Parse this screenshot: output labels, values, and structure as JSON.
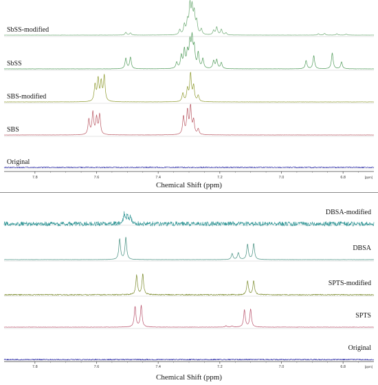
{
  "chart_data": [
    {
      "type": "line",
      "title": "",
      "xlabel": "Chemical Shift (ppm)",
      "ylabel": "",
      "xlim": [
        7.9,
        6.7
      ],
      "x_reversed": true,
      "ticks": [
        "7.8",
        "7.6",
        "7.4",
        "7.2",
        "7.0",
        "6.8"
      ],
      "unit_tick": "[ppm]",
      "grid": false,
      "legend": "none",
      "series": [
        {
          "name": "SbSS-modified",
          "color": "#6aa870",
          "noise": 0.15,
          "peaks": [
            [
              7.505,
              0.1
            ],
            [
              7.49,
              0.08
            ],
            [
              7.33,
              0.18
            ],
            [
              7.315,
              0.35
            ],
            [
              7.305,
              0.45
            ],
            [
              7.297,
              1.0
            ],
            [
              7.29,
              0.88
            ],
            [
              7.283,
              0.72
            ],
            [
              7.275,
              0.45
            ],
            [
              7.26,
              0.2
            ],
            [
              7.22,
              0.16
            ],
            [
              7.21,
              0.28
            ],
            [
              7.195,
              0.2
            ],
            [
              7.18,
              0.08
            ],
            [
              6.88,
              0.05
            ],
            [
              6.86,
              0.06
            ],
            [
              6.82,
              0.05
            ],
            [
              6.79,
              0.04
            ]
          ]
        },
        {
          "name": "SbSS",
          "color": "#4e9a58",
          "noise": 0.2,
          "peaks": [
            [
              7.505,
              0.38
            ],
            [
              7.49,
              0.42
            ],
            [
              7.34,
              0.22
            ],
            [
              7.325,
              0.45
            ],
            [
              7.315,
              0.65
            ],
            [
              7.305,
              0.55
            ],
            [
              7.297,
              0.85
            ],
            [
              7.29,
              1.0
            ],
            [
              7.283,
              0.7
            ],
            [
              7.27,
              0.55
            ],
            [
              7.255,
              0.35
            ],
            [
              7.22,
              0.28
            ],
            [
              7.21,
              0.32
            ],
            [
              7.195,
              0.22
            ],
            [
              6.92,
              0.3
            ],
            [
              6.895,
              0.48
            ],
            [
              6.835,
              0.58
            ],
            [
              6.805,
              0.25
            ]
          ]
        },
        {
          "name": "SBS-modified",
          "color": "#8e9a2e",
          "noise": 0.25,
          "peaks": [
            [
              7.605,
              0.6
            ],
            [
              7.595,
              0.8
            ],
            [
              7.585,
              0.68
            ],
            [
              7.575,
              0.92
            ],
            [
              7.32,
              0.3
            ],
            [
              7.305,
              0.45
            ],
            [
              7.295,
              1.0
            ],
            [
              7.285,
              0.55
            ],
            [
              7.27,
              0.22
            ]
          ]
        },
        {
          "name": "SBS",
          "color": "#b85560",
          "noise": 0.2,
          "peaks": [
            [
              7.625,
              0.55
            ],
            [
              7.612,
              0.8
            ],
            [
              7.6,
              0.6
            ],
            [
              7.59,
              0.72
            ],
            [
              7.318,
              0.65
            ],
            [
              7.305,
              0.85
            ],
            [
              7.295,
              1.0
            ],
            [
              7.285,
              0.5
            ],
            [
              7.27,
              0.2
            ]
          ]
        },
        {
          "name": "Original",
          "color": "#2e2ea8",
          "noise": 1.0,
          "peaks": []
        }
      ]
    },
    {
      "type": "line",
      "title": "",
      "xlabel": "Chemical Shift (ppm)",
      "ylabel": "",
      "xlim": [
        7.9,
        6.7
      ],
      "x_reversed": true,
      "ticks": [
        "7.8",
        "7.6",
        "7.4",
        "7.2",
        "7.0",
        "6.8"
      ],
      "unit_tick": "[ppm]",
      "grid": false,
      "legend": "none",
      "series": [
        {
          "name": "DBSA-modified",
          "color": "#3a9a9a",
          "noise": 4.0,
          "peaks": [
            [
              7.51,
              0.35
            ],
            [
              7.5,
              0.3
            ],
            [
              7.49,
              0.28
            ]
          ]
        },
        {
          "name": "DBSA",
          "color": "#3f8c7c",
          "noise": 0.2,
          "peaks": [
            [
              7.525,
              0.75
            ],
            [
              7.505,
              0.8
            ],
            [
              7.16,
              0.22
            ],
            [
              7.14,
              0.25
            ],
            [
              7.11,
              0.55
            ],
            [
              7.09,
              0.58
            ]
          ]
        },
        {
          "name": "SPTS-modified",
          "color": "#7a8a2a",
          "noise": 1.0,
          "peaks": [
            [
              7.47,
              0.7
            ],
            [
              7.45,
              0.75
            ],
            [
              7.11,
              0.5
            ],
            [
              7.09,
              0.5
            ]
          ]
        },
        {
          "name": "SPTS",
          "color": "#b8506a",
          "noise": 0.3,
          "peaks": [
            [
              7.475,
              0.75
            ],
            [
              7.455,
              0.78
            ],
            [
              7.18,
              0.05
            ],
            [
              7.16,
              0.04
            ],
            [
              7.12,
              0.62
            ],
            [
              7.1,
              0.65
            ]
          ]
        },
        {
          "name": "Original",
          "color": "#2e2ea8",
          "noise": 1.0,
          "peaks": []
        }
      ]
    }
  ]
}
